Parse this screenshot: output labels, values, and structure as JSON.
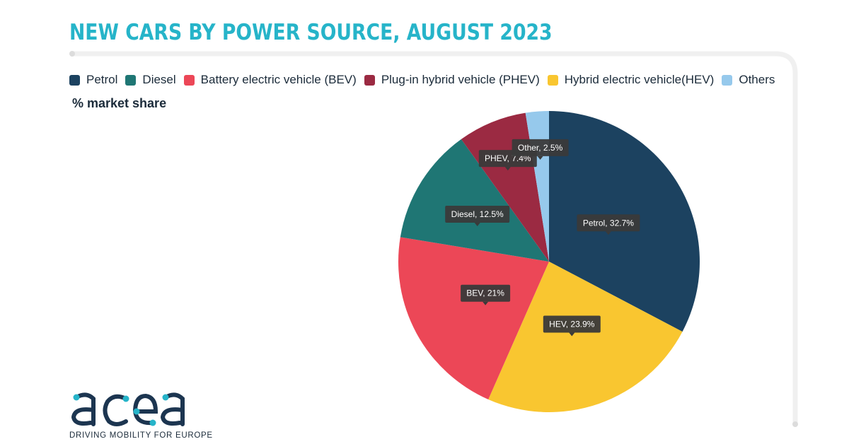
{
  "title": "NEW CARS BY POWER SOURCE, AUGUST 2023",
  "ylabel": "% market share",
  "legend": [
    {
      "label": "Petrol",
      "color": "#1c4260"
    },
    {
      "label": "Diesel",
      "color": "#1f7674"
    },
    {
      "label": "Battery electric vehicle (BEV)",
      "color": "#ec4757"
    },
    {
      "label": "Plug-in hybrid vehicle (PHEV)",
      "color": "#9b2a42"
    },
    {
      "label": "Hybrid electric vehicle(HEV)",
      "color": "#f9c630"
    },
    {
      "label": "Others",
      "color": "#96c9ec"
    }
  ],
  "chart_data": {
    "type": "pie",
    "title": "NEW CARS BY POWER SOURCE, AUGUST 2023",
    "subtitle": "% market share",
    "slices": [
      {
        "label": "Petrol",
        "value": 32.7,
        "color": "#1c4260",
        "data_label": "Petrol, 32.7%"
      },
      {
        "label": "HEV",
        "value": 23.9,
        "color": "#f9c630",
        "data_label": "HEV, 23.9%"
      },
      {
        "label": "BEV",
        "value": 21,
        "color": "#ec4757",
        "data_label": "BEV, 21%"
      },
      {
        "label": "Diesel",
        "value": 12.5,
        "color": "#1f7674",
        "data_label": "Diesel, 12.5%"
      },
      {
        "label": "PHEV",
        "value": 7.4,
        "color": "#9b2a42",
        "data_label": "PHEV, 7.4%"
      },
      {
        "label": "Other",
        "value": 2.5,
        "color": "#96c9ec",
        "data_label": "Other, 2.5%"
      }
    ],
    "legend_placement": "top"
  },
  "logo": {
    "wordmark": "acea",
    "tagline": "DRIVING MOBILITY FOR EUROPE"
  }
}
